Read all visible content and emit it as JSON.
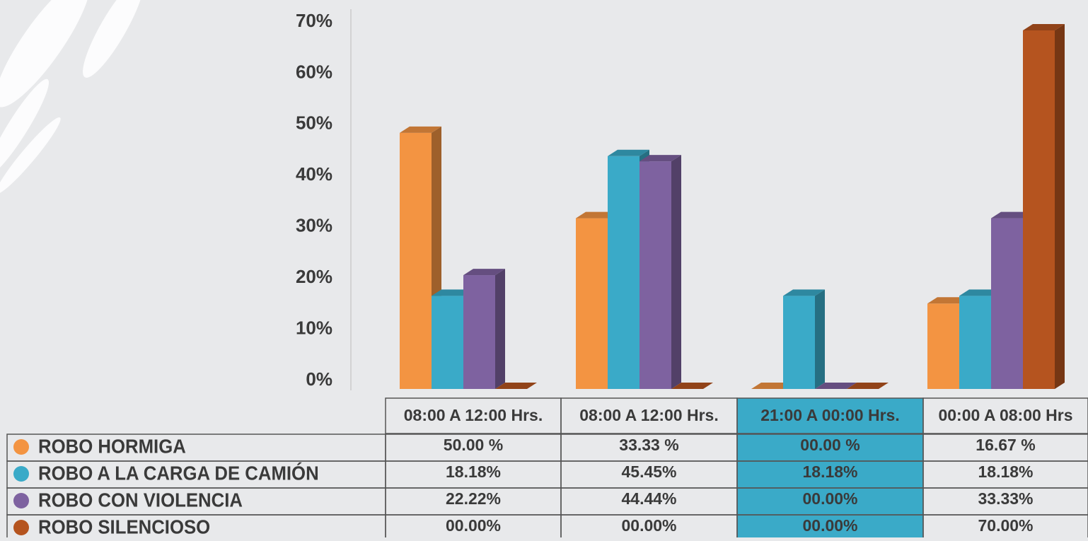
{
  "chart_data": {
    "type": "bar",
    "categories": [
      "08:00 A 12:00 Hrs.",
      "08:00 A 12:00 Hrs.",
      "21:00 A 00:00 Hrs.",
      "00:00 A 08:00 Hrs"
    ],
    "series": [
      {
        "name": "ROBO HORMIGA",
        "color": "#f39442",
        "values": [
          50,
          33.33,
          0,
          16.67
        ],
        "value_labels": [
          "50.00 %",
          "33.33 %",
          "00.00 %",
          "16.67 %"
        ]
      },
      {
        "name": "ROBO A LA CARGA DE CAMIÓN",
        "color": "#3aaac8",
        "values": [
          18.18,
          45.45,
          18.18,
          18.18
        ],
        "value_labels": [
          "18.18%",
          "45.45%",
          "18.18%",
          "18.18%"
        ]
      },
      {
        "name": "ROBO CON VIOLENCIA",
        "color": "#7e62a0",
        "values": [
          22.22,
          44.44,
          0,
          33.33
        ],
        "value_labels": [
          "22.22%",
          "44.44%",
          "00.00%",
          "33.33%"
        ]
      },
      {
        "name": "ROBO SILENCIOSO",
        "color": "#b5541f",
        "values": [
          0,
          0,
          0,
          70
        ],
        "value_labels": [
          "00.00%",
          "00.00%",
          "00.00%",
          "70.00%"
        ]
      }
    ],
    "ylim": [
      0,
      70
    ],
    "yticks": [
      {
        "value": 0,
        "label": "0%"
      },
      {
        "value": 10,
        "label": "10%"
      },
      {
        "value": 20,
        "label": "20%"
      },
      {
        "value": 30,
        "label": "30%"
      },
      {
        "value": 40,
        "label": "40%"
      },
      {
        "value": 50,
        "label": "50%"
      },
      {
        "value": 60,
        "label": "60%"
      },
      {
        "value": 70,
        "label": "70%"
      }
    ],
    "highlight_category": 2,
    "highlight_color": "#3aaac8"
  }
}
